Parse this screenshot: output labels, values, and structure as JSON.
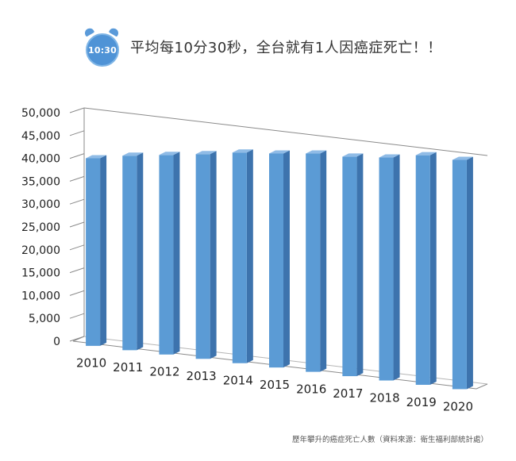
{
  "header": {
    "clock_text": "10:30",
    "title": "平均每10分30秒，全台就有1人因癌症死亡！！"
  },
  "source_note": "歷年攀升的癌症死亡人數（資料來源：衛生福利部統計處）",
  "chart_data": {
    "type": "bar",
    "title": "",
    "xlabel": "",
    "ylabel": "",
    "categories": [
      "2010",
      "2011",
      "2012",
      "2013",
      "2014",
      "2015",
      "2016",
      "2017",
      "2018",
      "2019",
      "2020"
    ],
    "values": [
      41046,
      42559,
      43665,
      44791,
      46094,
      46829,
      47760,
      48037,
      48784,
      50232,
      50161
    ],
    "ylim": [
      0,
      50000
    ],
    "yticks": [
      "0",
      "5,000",
      "10,000",
      "15,000",
      "20,000",
      "25,000",
      "30,000",
      "35,000",
      "40,000",
      "45,000",
      "50,000"
    ],
    "grid": false,
    "style": "3d",
    "bar_color": "#5b9bd5"
  }
}
